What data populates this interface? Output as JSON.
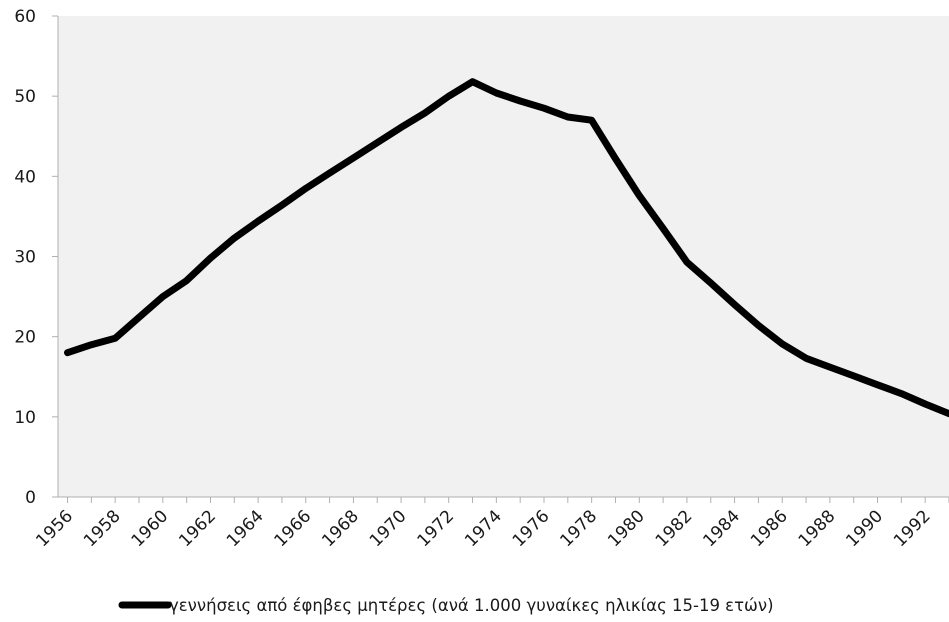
{
  "chart_data": {
    "type": "line",
    "title": "",
    "xlabel": "",
    "ylabel": "",
    "ylim": [
      0,
      60
    ],
    "yticks": [
      "0",
      "10",
      "20",
      "30",
      "40",
      "50",
      "60"
    ],
    "x_tick_labels": [
      "1956",
      "1958",
      "1960",
      "1962",
      "1964",
      "1966",
      "1968",
      "1970",
      "1972",
      "1974",
      "1976",
      "1978",
      "1980",
      "1982",
      "1984",
      "1986",
      "1988",
      "1990",
      "1992"
    ],
    "grid": false,
    "legend": "bottom",
    "series": [
      {
        "name": "γεννήσεις από έφηβες μητέρες (ανά 1.000 γυναίκες ηλικίας 15-19 ετών)",
        "color": "#000000",
        "x": [
          1956,
          1957,
          1958,
          1959,
          1960,
          1961,
          1962,
          1963,
          1964,
          1965,
          1966,
          1967,
          1968,
          1969,
          1970,
          1971,
          1972,
          1973,
          1974,
          1975,
          1976,
          1977,
          1978,
          1979,
          1980,
          1981,
          1982,
          1983,
          1984,
          1985,
          1986,
          1987,
          1988,
          1989,
          1990,
          1991,
          1992,
          1993
        ],
        "values": [
          18.0,
          19.0,
          19.8,
          22.4,
          25.0,
          27.0,
          29.8,
          32.3,
          34.4,
          36.4,
          38.5,
          40.4,
          42.3,
          44.2,
          46.1,
          47.9,
          50.0,
          51.8,
          50.4,
          49.4,
          48.5,
          47.4,
          47.0,
          42.2,
          37.6,
          33.5,
          29.3,
          26.7,
          24.0,
          21.4,
          19.1,
          17.3,
          16.2,
          15.1,
          14.0,
          12.9,
          11.6,
          10.4
        ]
      }
    ]
  }
}
